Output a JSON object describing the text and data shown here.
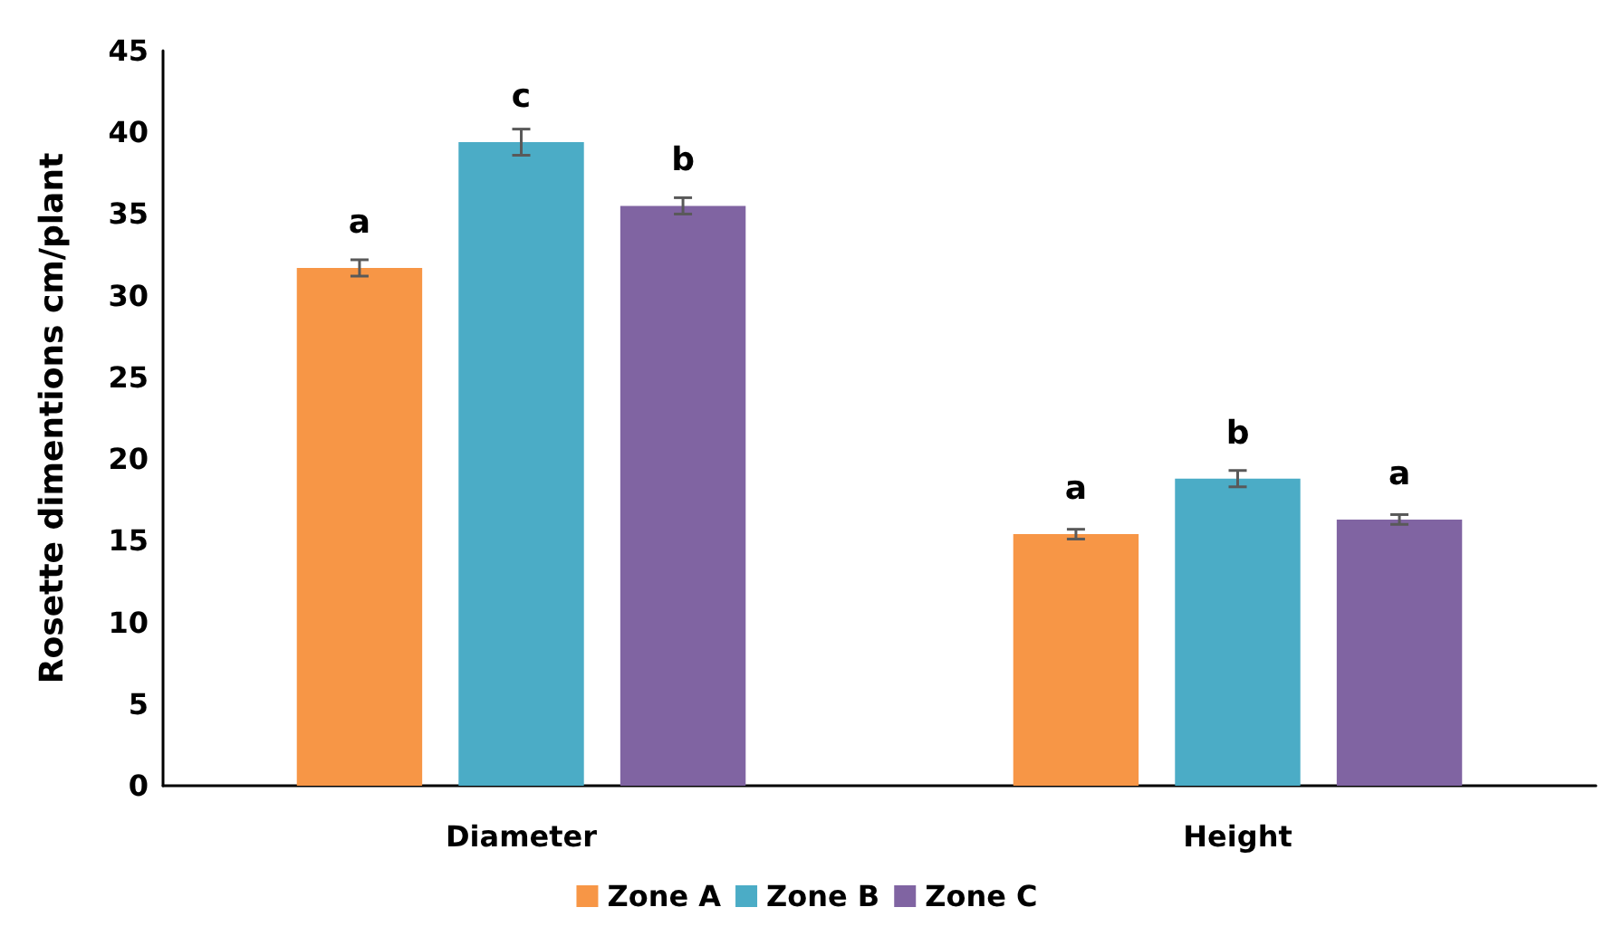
{
  "chart_data": {
    "type": "bar",
    "ylabel": "Rosette dimentions cm/plant",
    "categories": [
      "Diameter",
      "Height"
    ],
    "series": [
      {
        "name": "Zone A",
        "color": "#f79646",
        "values": [
          31.7,
          15.4
        ],
        "errors": [
          0.5,
          0.3
        ],
        "value_labels": [
          "a",
          "a"
        ]
      },
      {
        "name": "Zone B",
        "color": "#4bacc6",
        "values": [
          39.4,
          18.8
        ],
        "errors": [
          0.8,
          0.5
        ],
        "value_labels": [
          "c",
          "b"
        ]
      },
      {
        "name": "Zone C",
        "color": "#8064a2",
        "values": [
          35.5,
          16.3
        ],
        "errors": [
          0.5,
          0.3
        ],
        "value_labels": [
          "b",
          "a"
        ]
      }
    ],
    "ylim": [
      0,
      45
    ],
    "yticks": [
      0,
      5,
      10,
      15,
      20,
      25,
      30,
      35,
      40,
      45
    ],
    "grid": false,
    "legend": "bottom"
  }
}
